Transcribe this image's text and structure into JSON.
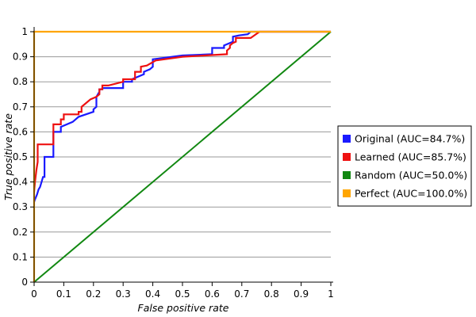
{
  "chart_data": {
    "type": "line",
    "title": "",
    "xlabel": "False positive rate",
    "ylabel": "True positive rate",
    "xlim": [
      0,
      1
    ],
    "ylim": [
      0,
      1
    ],
    "x_ticks": [
      "0",
      "0.1",
      "0.2",
      "0.3",
      "0.4",
      "0.5",
      "0.6",
      "0.7",
      "0.8",
      "0.9",
      "1"
    ],
    "y_ticks": [
      "0",
      "0.1",
      "0.2",
      "0.3",
      "0.4",
      "0.5",
      "0.6",
      "0.7",
      "0.8",
      "0.9",
      "1"
    ],
    "grid": "horizontal",
    "legend_position": "right",
    "series": [
      {
        "name": "Original (AUC=84.7%)",
        "color": "#1a1aff",
        "x": [
          0,
          0.003,
          0.01,
          0.015,
          0.02,
          0.025,
          0.03,
          0.035,
          0.035,
          0.045,
          0.055,
          0.065,
          0.065,
          0.09,
          0.09,
          0.13,
          0.15,
          0.2,
          0.2,
          0.21,
          0.21,
          0.22,
          0.22,
          0.23,
          0.23,
          0.26,
          0.3,
          0.3,
          0.33,
          0.33,
          0.37,
          0.37,
          0.39,
          0.4,
          0.4,
          0.5,
          0.6,
          0.6,
          0.64,
          0.64,
          0.67,
          0.67,
          0.69,
          0.72,
          0.73,
          0.76,
          1.0
        ],
        "y": [
          0.32,
          0.33,
          0.35,
          0.37,
          0.38,
          0.4,
          0.42,
          0.42,
          0.5,
          0.5,
          0.5,
          0.5,
          0.6,
          0.6,
          0.62,
          0.64,
          0.66,
          0.68,
          0.69,
          0.7,
          0.74,
          0.76,
          0.77,
          0.77,
          0.775,
          0.775,
          0.775,
          0.8,
          0.8,
          0.81,
          0.83,
          0.84,
          0.85,
          0.86,
          0.89,
          0.905,
          0.91,
          0.935,
          0.935,
          0.945,
          0.96,
          0.98,
          0.985,
          0.99,
          1.0,
          1.0,
          1.0
        ]
      },
      {
        "name": "Learned (AUC=85.7%)",
        "color": "#ee1111",
        "x": [
          0,
          0.003,
          0.008,
          0.012,
          0.012,
          0.065,
          0.065,
          0.09,
          0.09,
          0.1,
          0.1,
          0.15,
          0.15,
          0.16,
          0.16,
          0.17,
          0.19,
          0.21,
          0.22,
          0.22,
          0.23,
          0.23,
          0.25,
          0.3,
          0.3,
          0.34,
          0.34,
          0.36,
          0.36,
          0.38,
          0.41,
          0.5,
          0.65,
          0.65,
          0.66,
          0.66,
          0.67,
          0.68,
          0.68,
          0.73,
          0.76,
          1.0
        ],
        "y": [
          0.36,
          0.4,
          0.45,
          0.48,
          0.55,
          0.55,
          0.63,
          0.63,
          0.65,
          0.65,
          0.67,
          0.67,
          0.68,
          0.68,
          0.7,
          0.71,
          0.73,
          0.74,
          0.75,
          0.77,
          0.77,
          0.785,
          0.785,
          0.8,
          0.81,
          0.81,
          0.84,
          0.84,
          0.86,
          0.865,
          0.885,
          0.9,
          0.91,
          0.925,
          0.935,
          0.945,
          0.955,
          0.96,
          0.975,
          0.975,
          1.0,
          1.0
        ]
      },
      {
        "name": "Random (AUC=50.0%)",
        "color": "#118811",
        "x": [
          0,
          1
        ],
        "y": [
          0,
          1
        ]
      },
      {
        "name": "Perfect (AUC=100.0%)",
        "color": "#ffa500",
        "x": [
          0,
          0,
          1
        ],
        "y": [
          0,
          1,
          1
        ]
      }
    ]
  }
}
